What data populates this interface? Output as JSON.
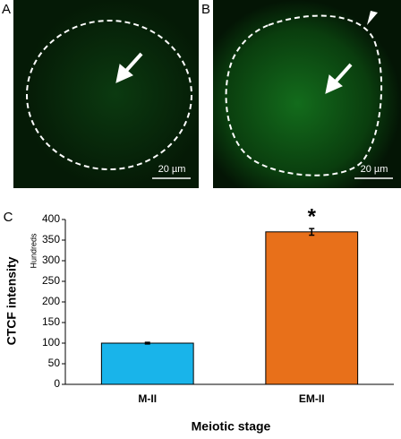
{
  "panels": [
    {
      "label": "A",
      "scale_bar": "20 µm"
    },
    {
      "label": "B",
      "scale_bar": "20 µm"
    }
  ],
  "chart_label": "C",
  "chart_data": {
    "type": "bar",
    "ylabel": "CTCF intensity",
    "yunit": "Hundreds",
    "xlabel": "Meiotic stage",
    "categories": [
      "M-II",
      "EM-II"
    ],
    "values": [
      100,
      370
    ],
    "errors": [
      2,
      8
    ],
    "colors": [
      "#19b4ea",
      "#e8701a"
    ],
    "annotation": "*",
    "ylim": [
      0,
      400
    ],
    "yticks": [
      0,
      50,
      100,
      150,
      200,
      250,
      300,
      350,
      400
    ],
    "grid": false
  }
}
